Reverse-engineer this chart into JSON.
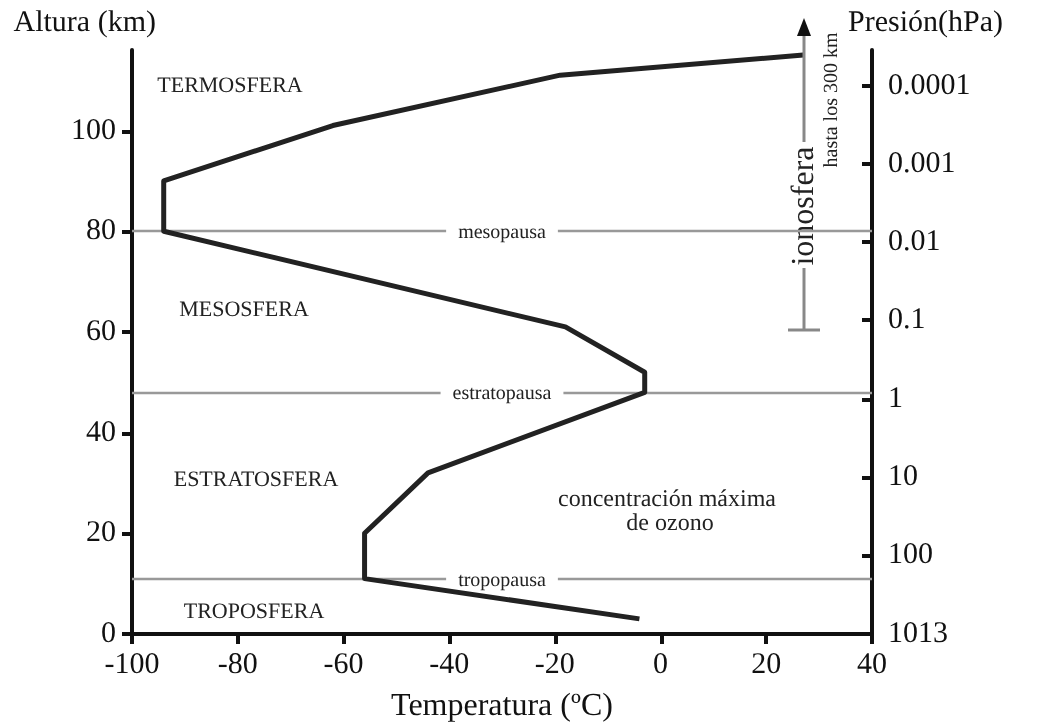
{
  "chart_data": {
    "type": "line",
    "xlabel": "Temperatura (ºC)",
    "ylabel": "Altura (km)",
    "y2label": "Presión(hPa)",
    "x": [
      -4,
      -56,
      -56,
      -44,
      -3,
      -3,
      -18,
      -94,
      -94,
      -62,
      -19,
      27
    ],
    "values": [
      3,
      11,
      20,
      32,
      48,
      52,
      61,
      80,
      90,
      101,
      111,
      115
    ],
    "color": "#222222",
    "xlim": [
      -100,
      40
    ],
    "xticks": [
      -100,
      -80,
      -60,
      -40,
      -20,
      0,
      20,
      40
    ],
    "ylim": [
      0,
      116
    ],
    "yticks": [
      0,
      20,
      40,
      60,
      80,
      100
    ],
    "log": "y2",
    "y2lim": [
      1013,
      3.5e-05
    ],
    "y2ticks": [
      0.0001,
      0.001,
      0.01,
      0.1,
      1,
      10,
      100,
      1013
    ],
    "ref_lines": [
      {
        "axis": "y",
        "value": 80,
        "label": "mesopausa",
        "color": "#999999"
      },
      {
        "axis": "y",
        "value": 48,
        "label": "estratopausa",
        "color": "#999999"
      },
      {
        "axis": "y",
        "value": 11,
        "label": "tropopausa",
        "color": "#999999"
      }
    ],
    "annotations": [
      "TERMOSFERA",
      "MESOSFERA",
      "ESTRATOSFERA",
      "TROPOSFERA",
      "concentración máxima de ozono",
      "ionosfera",
      "hasta los 300 km"
    ]
  }
}
